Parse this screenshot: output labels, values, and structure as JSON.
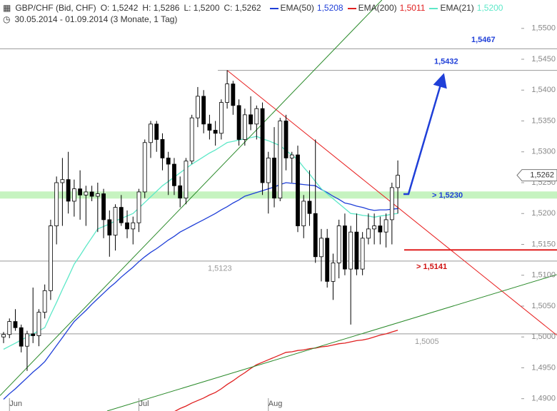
{
  "chart_data": {
    "type": "candlestick",
    "title": "GBP/CHF (Bid, CHF)",
    "ohlc_labels": [
      "O: 1,5242",
      "H: 1,5286",
      "L: 1,5200",
      "C: 1,5262"
    ],
    "subtitle": "30.05.2014 - 01.09.2014 (3 Monate, 1 Tag)",
    "categories": [
      null,
      "Jun",
      null,
      null,
      null,
      null,
      null,
      null,
      null,
      null,
      null,
      null,
      null,
      null,
      null,
      null,
      null,
      null,
      null,
      null,
      null,
      null,
      null,
      "Jul",
      null,
      null,
      null,
      null,
      null,
      null,
      null,
      null,
      null,
      null,
      null,
      null,
      null,
      null,
      null,
      null,
      null,
      null,
      null,
      null,
      null,
      "Aug",
      null,
      null,
      null,
      null,
      null,
      null,
      null,
      null,
      null,
      null,
      null,
      null,
      null,
      null,
      null,
      null,
      null,
      null,
      null,
      null,
      null,
      null
    ],
    "open": [
      1.5,
      1.5004,
      1.5025,
      1.5015,
      1.4985,
      1.5005,
      1.5002,
      1.504,
      1.5075,
      1.518,
      1.525,
      1.5255,
      1.522,
      1.524,
      1.523,
      1.5235,
      1.5228,
      1.5232,
      1.519,
      1.5165,
      1.521,
      1.5185,
      1.5175,
      1.5185,
      1.5235,
      1.5315,
      1.5345,
      1.532,
      1.529,
      1.528,
      1.5245,
      1.5225,
      1.5285,
      1.5355,
      1.539,
      1.5345,
      1.5335,
      1.533,
      1.538,
      1.541,
      1.5375,
      1.532,
      1.536,
      1.5345,
      1.537,
      1.525,
      1.529,
      1.5225,
      1.535,
      1.529,
      1.5295,
      1.518,
      1.522,
      1.52,
      1.513,
      1.516,
      1.509,
      1.512,
      1.518,
      1.511,
      1.517,
      1.511,
      1.516,
      1.5175,
      1.518,
      1.517,
      1.519,
      1.5242
    ],
    "high": [
      1.5008,
      1.503,
      1.5045,
      1.502,
      1.501,
      1.508,
      1.5045,
      1.5085,
      1.519,
      1.526,
      1.529,
      1.53,
      1.5255,
      1.527,
      1.5245,
      1.5245,
      1.525,
      1.524,
      1.5205,
      1.5215,
      1.523,
      1.5205,
      1.5195,
      1.524,
      1.532,
      1.535,
      1.535,
      1.533,
      1.53,
      1.529,
      1.526,
      1.529,
      1.536,
      1.5405,
      1.54,
      1.536,
      1.535,
      1.5385,
      1.5432,
      1.5415,
      1.5385,
      1.537,
      1.539,
      1.5375,
      1.538,
      1.53,
      1.534,
      1.5355,
      1.536,
      1.53,
      1.531,
      1.523,
      1.527,
      1.532,
      1.5175,
      1.5175,
      1.5135,
      1.519,
      1.52,
      1.518,
      1.52,
      1.517,
      1.52,
      1.52,
      1.5195,
      1.52,
      1.525,
      1.5286
    ],
    "low": [
      1.499,
      1.4998,
      1.501,
      1.4975,
      1.4945,
      1.499,
      1.4985,
      1.503,
      1.506,
      1.515,
      1.518,
      1.52,
      1.5195,
      1.519,
      1.518,
      1.522,
      1.517,
      1.516,
      1.513,
      1.514,
      1.518,
      1.516,
      1.515,
      1.517,
      1.5225,
      1.529,
      1.53,
      1.527,
      1.523,
      1.523,
      1.521,
      1.5215,
      1.528,
      1.534,
      1.533,
      1.532,
      1.531,
      1.532,
      1.537,
      1.536,
      1.531,
      1.531,
      1.5335,
      1.532,
      1.523,
      1.52,
      1.521,
      1.522,
      1.527,
      1.525,
      1.517,
      1.516,
      1.518,
      1.512,
      1.509,
      1.508,
      1.506,
      1.5095,
      1.51,
      1.502,
      1.51,
      1.51,
      1.515,
      1.515,
      1.515,
      1.5145,
      1.515,
      1.52
    ],
    "close": [
      1.5004,
      1.5025,
      1.5015,
      1.4985,
      1.5005,
      1.5002,
      1.504,
      1.5075,
      1.518,
      1.525,
      1.5255,
      1.522,
      1.524,
      1.523,
      1.5235,
      1.5228,
      1.5232,
      1.519,
      1.5165,
      1.521,
      1.5185,
      1.5175,
      1.5185,
      1.5235,
      1.5315,
      1.5345,
      1.532,
      1.529,
      1.528,
      1.5245,
      1.5225,
      1.5285,
      1.5355,
      1.539,
      1.5345,
      1.5335,
      1.533,
      1.538,
      1.541,
      1.5375,
      1.532,
      1.536,
      1.5345,
      1.537,
      1.525,
      1.529,
      1.5225,
      1.535,
      1.529,
      1.5295,
      1.518,
      1.522,
      1.52,
      1.513,
      1.516,
      1.509,
      1.512,
      1.518,
      1.511,
      1.517,
      1.511,
      1.516,
      1.5175,
      1.518,
      1.517,
      1.519,
      1.5242,
      1.5262
    ],
    "series": [
      {
        "name": "EMA(50)",
        "color": "#1f3fd8",
        "value_label": "1,5208",
        "values": [
          1.4899,
          1.4908,
          1.4916,
          1.4925,
          1.4934,
          1.4943,
          1.4951,
          1.496,
          1.4973,
          1.4986,
          1.4999,
          1.5012,
          1.5025,
          1.5034,
          1.5043,
          1.5053,
          1.5062,
          1.5071,
          1.508,
          1.5088,
          1.5097,
          1.5105,
          1.5113,
          1.5122,
          1.513,
          1.5137,
          1.5143,
          1.515,
          1.5157,
          1.5163,
          1.517,
          1.5175,
          1.518,
          1.5185,
          1.519,
          1.5195,
          1.52,
          1.5206,
          1.5211,
          1.5217,
          1.5222,
          1.5228,
          1.5231,
          1.5234,
          1.5237,
          1.524,
          1.5243,
          1.5247,
          1.525,
          1.5249,
          1.5248,
          1.5247,
          1.5246,
          1.5245,
          1.5239,
          1.5234,
          1.5228,
          1.5223,
          1.5217,
          1.5215,
          1.5212,
          1.521,
          1.5207,
          1.5205,
          1.5206,
          1.5206,
          1.5207,
          1.5208
        ]
      },
      {
        "name": "EMA(200)",
        "color": "#e02020",
        "value_label": "1,5011",
        "values": [
          null,
          null,
          null,
          null,
          null,
          null,
          null,
          null,
          null,
          null,
          null,
          null,
          null,
          null,
          null,
          null,
          null,
          null,
          null,
          null,
          null,
          null,
          null,
          null,
          null,
          null,
          null,
          null,
          1.4875,
          1.4879,
          1.4884,
          1.4888,
          1.4893,
          1.4897,
          1.4901,
          1.4906,
          1.491,
          1.4916,
          1.4923,
          1.4929,
          1.4936,
          1.4942,
          1.4949,
          1.4955,
          1.4959,
          1.4963,
          1.4967,
          1.4971,
          1.4975,
          1.4976,
          1.4978,
          1.4979,
          1.4981,
          1.4982,
          1.4984,
          1.4985,
          1.4987,
          1.4989,
          1.499,
          1.4992,
          1.4994,
          1.4995,
          1.4997,
          1.5,
          1.5003,
          1.5005,
          1.5008,
          1.5011
        ]
      },
      {
        "name": "EMA(21)",
        "color": "#5ee8c8",
        "value_label": "1,5200",
        "values": [
          1.498,
          1.4985,
          1.499,
          1.4995,
          1.5,
          1.5005,
          1.501,
          1.5015,
          1.5036,
          1.5056,
          1.5077,
          1.5097,
          1.5118,
          1.5132,
          1.5147,
          1.5161,
          1.5175,
          1.5179,
          1.5183,
          1.5188,
          1.5192,
          1.5196,
          1.52,
          1.5209,
          1.5218,
          1.5227,
          1.5236,
          1.5245,
          1.5252,
          1.5259,
          1.5266,
          1.5273,
          1.528,
          1.5286,
          1.5292,
          1.5298,
          1.5303,
          1.5309,
          1.5315,
          1.5317,
          1.5319,
          1.5321,
          1.5323,
          1.5325,
          1.5321,
          1.5318,
          1.5314,
          1.531,
          1.5302,
          1.5295,
          1.5287,
          1.5275,
          1.5264,
          1.5252,
          1.524,
          1.5232,
          1.5224,
          1.5216,
          1.5208,
          1.52,
          1.5199,
          1.5197,
          1.5196,
          1.5194,
          1.5196,
          1.5197,
          1.5199,
          1.52
        ]
      }
    ],
    "trendlines": [
      {
        "color": "#e82020",
        "from": [
          38,
          1.5432
        ],
        "to": [
          94,
          1.5003
        ]
      },
      {
        "color": "#2a8a2a",
        "from": [
          -0.6,
          1.4905
        ],
        "to": [
          64.3,
          1.5546
        ]
      },
      {
        "color": "#2a8a2a",
        "from": [
          17.6,
          1.488
        ],
        "to": [
          94,
          1.5101
        ]
      }
    ],
    "levels": [
      {
        "value": 1.5467,
        "label": "1,5467",
        "kind": "target"
      },
      {
        "value": 1.5432,
        "label": "1,5432",
        "kind": "arrow-target"
      },
      {
        "value": 1.523,
        "label": "> 1,5230",
        "kind": "zone"
      },
      {
        "value": 1.5141,
        "label": "> 1,5141",
        "kind": "stop"
      },
      {
        "value": 1.5123,
        "label": "1,5123",
        "kind": "line"
      },
      {
        "value": 1.5005,
        "label": "1,5005",
        "kind": "line"
      }
    ],
    "last_price": {
      "value": 1.5262,
      "label": "1,5262"
    },
    "ylim": [
      1.488,
      1.5546
    ],
    "yticks": [
      {
        "value": 1.49,
        "label": "1,4900"
      },
      {
        "value": 1.495,
        "label": "1,4950"
      },
      {
        "value": 1.5,
        "label": "1,5000"
      },
      {
        "value": 1.505,
        "label": "1,5050"
      },
      {
        "value": 1.51,
        "label": "1,5100"
      },
      {
        "value": 1.515,
        "label": "1,5150"
      },
      {
        "value": 1.52,
        "label": "1,5200"
      },
      {
        "value": 1.525,
        "label": "1,5250"
      },
      {
        "value": 1.53,
        "label": "1,5300"
      },
      {
        "value": 1.535,
        "label": "1,5350"
      },
      {
        "value": 1.54,
        "label": "1,5400"
      },
      {
        "value": 1.545,
        "label": "1,5450"
      },
      {
        "value": 1.55,
        "label": "1,5500"
      }
    ]
  }
}
